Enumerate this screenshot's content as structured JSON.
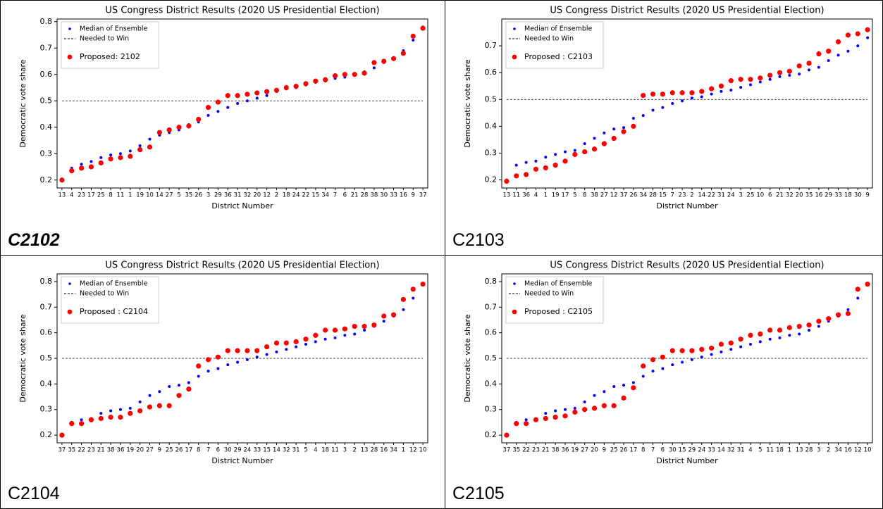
{
  "captions": [
    "C2102",
    "C2103",
    "C2104",
    "C2105"
  ],
  "chart_data": [
    {
      "type": "scatter",
      "title": "US Congress District Results  (2020 US Presidential Election)",
      "x_label": "District Number",
      "y_label": "Democratic vote share",
      "categories": [
        "13",
        "4",
        "23",
        "17",
        "25",
        "8",
        "11",
        "1",
        "19",
        "10",
        "14",
        "27",
        "5",
        "35",
        "26",
        "3",
        "29",
        "36",
        "31",
        "32",
        "20",
        "12",
        "2",
        "18",
        "24",
        "22",
        "15",
        "34",
        "7",
        "6",
        "21",
        "28",
        "38",
        "30",
        "33",
        "16",
        "9",
        "37"
      ],
      "series": [
        {
          "name": "Median of Ensemble",
          "color": "#0000ff",
          "values": [
            0.2,
            0.245,
            0.26,
            0.27,
            0.285,
            0.295,
            0.3,
            0.31,
            0.33,
            0.355,
            0.37,
            0.38,
            0.39,
            0.41,
            0.42,
            0.445,
            0.46,
            0.475,
            0.49,
            0.5,
            0.51,
            0.52,
            0.535,
            0.545,
            0.55,
            0.56,
            0.57,
            0.575,
            0.585,
            0.59,
            0.6,
            0.61,
            0.625,
            0.645,
            0.66,
            0.69,
            0.73,
            0.78
          ]
        },
        {
          "name": "Proposed: 2102",
          "color": "#ff0000",
          "values": [
            0.2,
            0.235,
            0.245,
            0.25,
            0.265,
            0.28,
            0.285,
            0.29,
            0.315,
            0.325,
            0.38,
            0.39,
            0.4,
            0.405,
            0.43,
            0.475,
            0.495,
            0.52,
            0.52,
            0.525,
            0.53,
            0.535,
            0.54,
            0.55,
            0.555,
            0.565,
            0.575,
            0.58,
            0.595,
            0.6,
            0.6,
            0.605,
            0.645,
            0.65,
            0.66,
            0.68,
            0.745,
            0.775
          ]
        }
      ],
      "threshold": {
        "name": "Needed to Win",
        "value": 0.5,
        "color": "#000000"
      },
      "ylim": [
        0.17,
        0.81
      ],
      "yticks": [
        0.2,
        0.3,
        0.4,
        0.5,
        0.6,
        0.7,
        0.8
      ]
    },
    {
      "type": "scatter",
      "title": "US Congress District Results  (2020 US Presidential Election)",
      "x_label": "District Number",
      "y_label": "Democratic vote share",
      "categories": [
        "13",
        "11",
        "36",
        "4",
        "1",
        "19",
        "17",
        "5",
        "8",
        "38",
        "27",
        "12",
        "37",
        "26",
        "34",
        "28",
        "15",
        "7",
        "23",
        "2",
        "14",
        "22",
        "31",
        "24",
        "3",
        "25",
        "10",
        "6",
        "21",
        "32",
        "20",
        "35",
        "16",
        "29",
        "33",
        "18",
        "30",
        "9"
      ],
      "series": [
        {
          "name": "Median of Ensemble",
          "color": "#0000ff",
          "values": [
            0.2,
            0.255,
            0.265,
            0.27,
            0.285,
            0.295,
            0.305,
            0.31,
            0.335,
            0.355,
            0.375,
            0.39,
            0.395,
            0.43,
            0.44,
            0.46,
            0.47,
            0.485,
            0.495,
            0.505,
            0.51,
            0.52,
            0.53,
            0.535,
            0.545,
            0.555,
            0.565,
            0.575,
            0.585,
            0.59,
            0.595,
            0.61,
            0.62,
            0.645,
            0.665,
            0.68,
            0.7,
            0.73
          ]
        },
        {
          "name": "Proposed : C2103",
          "color": "#ff0000",
          "values": [
            0.195,
            0.215,
            0.22,
            0.24,
            0.245,
            0.255,
            0.27,
            0.295,
            0.305,
            0.315,
            0.335,
            0.355,
            0.38,
            0.4,
            0.515,
            0.52,
            0.52,
            0.525,
            0.525,
            0.525,
            0.53,
            0.54,
            0.55,
            0.57,
            0.575,
            0.575,
            0.58,
            0.59,
            0.6,
            0.605,
            0.625,
            0.635,
            0.67,
            0.68,
            0.715,
            0.74,
            0.745,
            0.76
          ]
        }
      ],
      "threshold": {
        "name": "Needed to Win",
        "value": 0.5,
        "color": "#000000"
      },
      "ylim": [
        0.17,
        0.8
      ],
      "yticks": [
        0.2,
        0.3,
        0.4,
        0.5,
        0.6,
        0.7
      ]
    },
    {
      "type": "scatter",
      "title": "US Congress District Results  (2020 US Presidential Election)",
      "x_label": "District Number",
      "y_label": "Democratic vote share",
      "categories": [
        "37",
        "35",
        "22",
        "23",
        "21",
        "38",
        "36",
        "19",
        "20",
        "27",
        "9",
        "25",
        "26",
        "17",
        "8",
        "7",
        "6",
        "30",
        "29",
        "24",
        "33",
        "15",
        "14",
        "32",
        "31",
        "5",
        "4",
        "18",
        "11",
        "3",
        "2",
        "13",
        "28",
        "16",
        "34",
        "1",
        "12",
        "10"
      ],
      "series": [
        {
          "name": "Median of Ensemble",
          "color": "#0000ff",
          "values": [
            0.2,
            0.25,
            0.26,
            0.265,
            0.285,
            0.295,
            0.3,
            0.305,
            0.33,
            0.355,
            0.37,
            0.39,
            0.395,
            0.405,
            0.43,
            0.45,
            0.46,
            0.475,
            0.485,
            0.495,
            0.505,
            0.515,
            0.525,
            0.535,
            0.545,
            0.555,
            0.565,
            0.575,
            0.58,
            0.59,
            0.595,
            0.61,
            0.625,
            0.645,
            0.665,
            0.69,
            0.735,
            0.79
          ]
        },
        {
          "name": "Proposed : C2104",
          "color": "#ff0000",
          "values": [
            0.2,
            0.245,
            0.245,
            0.26,
            0.265,
            0.27,
            0.27,
            0.285,
            0.295,
            0.31,
            0.315,
            0.315,
            0.355,
            0.38,
            0.47,
            0.495,
            0.505,
            0.53,
            0.53,
            0.53,
            0.53,
            0.545,
            0.56,
            0.56,
            0.565,
            0.575,
            0.59,
            0.61,
            0.61,
            0.615,
            0.625,
            0.625,
            0.63,
            0.665,
            0.67,
            0.73,
            0.77,
            0.79
          ]
        }
      ],
      "threshold": {
        "name": "Needed to Win",
        "value": 0.5,
        "color": "#000000"
      },
      "ylim": [
        0.17,
        0.83
      ],
      "yticks": [
        0.2,
        0.3,
        0.4,
        0.5,
        0.6,
        0.7,
        0.8
      ]
    },
    {
      "type": "scatter",
      "title": "US Congress District Results  (2020 US Presidential Election)",
      "x_label": "District Number",
      "y_label": "Democratic vote share",
      "categories": [
        "37",
        "35",
        "22",
        "23",
        "21",
        "38",
        "36",
        "19",
        "27",
        "20",
        "9",
        "25",
        "26",
        "17",
        "8",
        "7",
        "6",
        "30",
        "15",
        "29",
        "24",
        "33",
        "14",
        "32",
        "31",
        "4",
        "5",
        "11",
        "18",
        "1",
        "13",
        "28",
        "3",
        "2",
        "34",
        "16",
        "12",
        "10"
      ],
      "series": [
        {
          "name": "Median of Ensemble",
          "color": "#0000ff",
          "values": [
            0.2,
            0.25,
            0.26,
            0.265,
            0.285,
            0.295,
            0.3,
            0.305,
            0.33,
            0.355,
            0.37,
            0.39,
            0.395,
            0.405,
            0.43,
            0.45,
            0.46,
            0.475,
            0.485,
            0.495,
            0.505,
            0.515,
            0.525,
            0.535,
            0.545,
            0.555,
            0.565,
            0.575,
            0.58,
            0.59,
            0.595,
            0.61,
            0.625,
            0.645,
            0.665,
            0.69,
            0.735,
            0.79
          ]
        },
        {
          "name": "Proposed : C2105",
          "color": "#ff0000",
          "values": [
            0.2,
            0.245,
            0.245,
            0.26,
            0.265,
            0.27,
            0.275,
            0.29,
            0.3,
            0.305,
            0.315,
            0.315,
            0.345,
            0.385,
            0.47,
            0.495,
            0.505,
            0.53,
            0.53,
            0.53,
            0.535,
            0.54,
            0.555,
            0.56,
            0.575,
            0.59,
            0.595,
            0.61,
            0.61,
            0.62,
            0.625,
            0.63,
            0.645,
            0.655,
            0.67,
            0.675,
            0.77,
            0.79
          ]
        }
      ],
      "threshold": {
        "name": "Needed to Win",
        "value": 0.5,
        "color": "#000000"
      },
      "ylim": [
        0.17,
        0.83
      ],
      "yticks": [
        0.2,
        0.3,
        0.4,
        0.5,
        0.6,
        0.7,
        0.8
      ]
    }
  ]
}
